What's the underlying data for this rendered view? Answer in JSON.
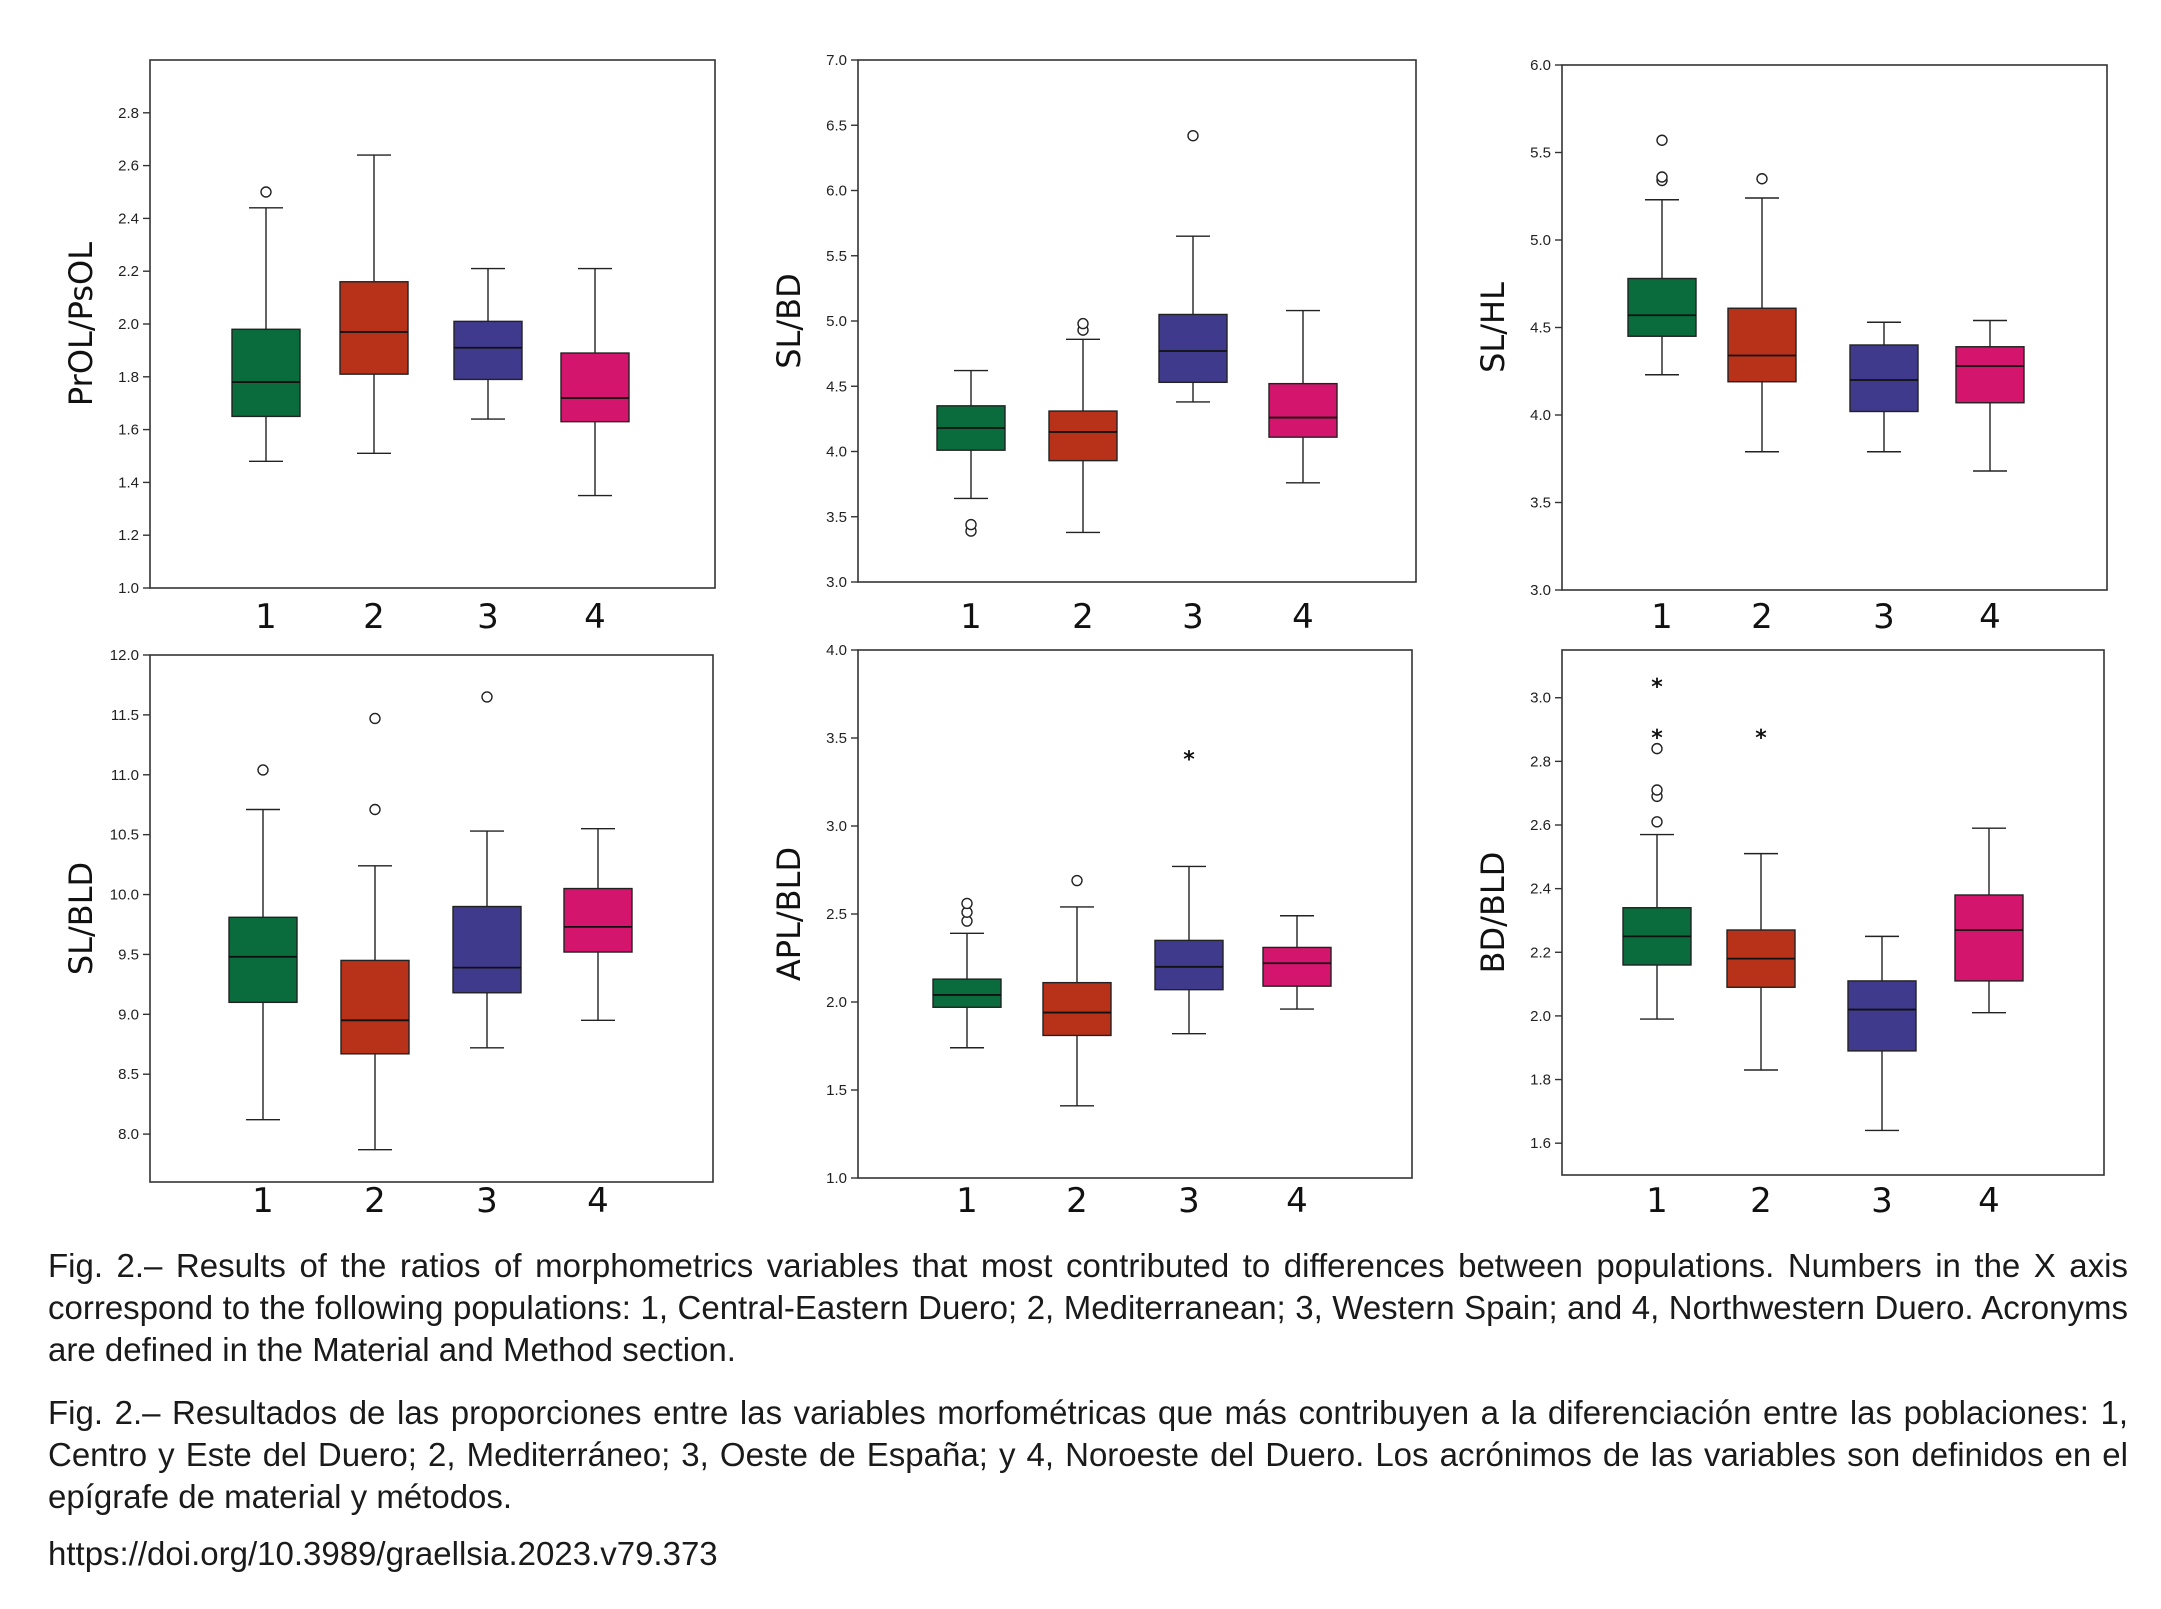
{
  "colors": {
    "1": "#0a6b3c",
    "2": "#b8321a",
    "3": "#3f3a8c",
    "4": "#d4156d"
  },
  "chart_data": [
    {
      "type": "box",
      "ylabel": "PrOL/PsOL",
      "categories": [
        "1",
        "2",
        "3",
        "4"
      ],
      "ylim": [
        1.0,
        3.0
      ],
      "yticks": [
        "1.0",
        "1.2",
        "1.4",
        "1.6",
        "1.8",
        "2.0",
        "2.2",
        "2.4",
        "2.6",
        "2.8"
      ],
      "boxes": [
        {
          "min": 1.48,
          "q1": 1.65,
          "median": 1.78,
          "q3": 1.98,
          "max": 2.44,
          "outliers": [
            2.5
          ],
          "extremes": []
        },
        {
          "min": 1.51,
          "q1": 1.81,
          "median": 1.97,
          "q3": 2.16,
          "max": 2.64,
          "outliers": [],
          "extremes": []
        },
        {
          "min": 1.64,
          "q1": 1.79,
          "median": 1.91,
          "q3": 2.01,
          "max": 2.21,
          "outliers": [],
          "extremes": []
        },
        {
          "min": 1.35,
          "q1": 1.63,
          "median": 1.72,
          "q3": 1.89,
          "max": 2.21,
          "outliers": [],
          "extremes": []
        }
      ]
    },
    {
      "type": "box",
      "ylabel": "SL/BD",
      "categories": [
        "1",
        "2",
        "3",
        "4"
      ],
      "ylim": [
        3.0,
        7.0
      ],
      "yticks": [
        "3.0",
        "3.5",
        "4.0",
        "4.5",
        "5.0",
        "5.5",
        "6.0",
        "6.5",
        "7.0"
      ],
      "boxes": [
        {
          "min": 3.64,
          "q1": 4.01,
          "median": 4.18,
          "q3": 4.35,
          "max": 4.62,
          "outliers": [
            3.39,
            3.44
          ],
          "extremes": []
        },
        {
          "min": 3.38,
          "q1": 3.93,
          "median": 4.15,
          "q3": 4.31,
          "max": 4.86,
          "outliers": [
            4.93,
            4.98
          ],
          "extremes": []
        },
        {
          "min": 4.38,
          "q1": 4.53,
          "median": 4.77,
          "q3": 5.05,
          "max": 5.65,
          "outliers": [
            6.42
          ],
          "extremes": []
        },
        {
          "min": 3.76,
          "q1": 4.11,
          "median": 4.26,
          "q3": 4.52,
          "max": 5.08,
          "outliers": [],
          "extremes": []
        }
      ]
    },
    {
      "type": "box",
      "ylabel": "SL/HL",
      "categories": [
        "1",
        "2",
        "3",
        "4"
      ],
      "ylim": [
        3.0,
        6.0
      ],
      "yticks": [
        "3.0",
        "3.5",
        "4.0",
        "4.5",
        "5.0",
        "5.5",
        "6.0"
      ],
      "boxes": [
        {
          "min": 4.23,
          "q1": 4.45,
          "median": 4.57,
          "q3": 4.78,
          "max": 5.23,
          "outliers": [
            5.34,
            5.36,
            5.57
          ],
          "extremes": []
        },
        {
          "min": 3.79,
          "q1": 4.19,
          "median": 4.34,
          "q3": 4.61,
          "max": 5.24,
          "outliers": [
            5.35
          ],
          "extremes": []
        },
        {
          "min": 3.79,
          "q1": 4.02,
          "median": 4.2,
          "q3": 4.4,
          "max": 4.53,
          "outliers": [],
          "extremes": []
        },
        {
          "min": 3.68,
          "q1": 4.07,
          "median": 4.28,
          "q3": 4.39,
          "max": 4.54,
          "outliers": [],
          "extremes": []
        }
      ]
    },
    {
      "type": "box",
      "ylabel": "SL/BLD",
      "categories": [
        "1",
        "2",
        "3",
        "4"
      ],
      "ylim": [
        7.6,
        12.0
      ],
      "yticks": [
        "8.0",
        "8.5",
        "9.0",
        "9.5",
        "10.0",
        "10.5",
        "11.0",
        "11.5",
        "12.0"
      ],
      "boxes": [
        {
          "min": 8.12,
          "q1": 9.1,
          "median": 9.48,
          "q3": 9.81,
          "max": 10.71,
          "outliers": [
            11.04
          ],
          "extremes": []
        },
        {
          "min": 7.87,
          "q1": 8.67,
          "median": 8.95,
          "q3": 9.45,
          "max": 10.24,
          "outliers": [
            10.71,
            11.47
          ],
          "extremes": []
        },
        {
          "min": 8.72,
          "q1": 9.18,
          "median": 9.39,
          "q3": 9.9,
          "max": 10.53,
          "outliers": [
            11.65
          ],
          "extremes": []
        },
        {
          "min": 8.95,
          "q1": 9.52,
          "median": 9.73,
          "q3": 10.05,
          "max": 10.55,
          "outliers": [],
          "extremes": []
        }
      ]
    },
    {
      "type": "box",
      "ylabel": "APL/BLD",
      "categories": [
        "1",
        "2",
        "3",
        "4"
      ],
      "ylim": [
        1.0,
        4.0
      ],
      "yticks": [
        "1.0",
        "1.5",
        "2.0",
        "2.5",
        "3.0",
        "3.5",
        "4.0"
      ],
      "boxes": [
        {
          "min": 1.74,
          "q1": 1.97,
          "median": 2.04,
          "q3": 2.13,
          "max": 2.39,
          "outliers": [
            2.46,
            2.51,
            2.56
          ],
          "extremes": []
        },
        {
          "min": 1.41,
          "q1": 1.81,
          "median": 1.94,
          "q3": 2.11,
          "max": 2.54,
          "outliers": [
            2.69
          ],
          "extremes": []
        },
        {
          "min": 1.82,
          "q1": 2.07,
          "median": 2.2,
          "q3": 2.35,
          "max": 2.77,
          "outliers": [],
          "extremes": [
            3.39
          ]
        },
        {
          "min": 1.96,
          "q1": 2.09,
          "median": 2.22,
          "q3": 2.31,
          "max": 2.49,
          "outliers": [],
          "extremes": []
        }
      ]
    },
    {
      "type": "box",
      "ylabel": "BD/BLD",
      "categories": [
        "1",
        "2",
        "3",
        "4"
      ],
      "ylim": [
        1.5,
        3.15
      ],
      "yticks": [
        "1.6",
        "1.8",
        "2.0",
        "2.2",
        "2.4",
        "2.6",
        "2.8",
        "3.0"
      ],
      "boxes": [
        {
          "min": 1.99,
          "q1": 2.16,
          "median": 2.25,
          "q3": 2.34,
          "max": 2.57,
          "outliers": [
            2.61,
            2.69,
            2.71,
            2.84
          ],
          "extremes": [
            2.88,
            3.04
          ]
        },
        {
          "min": 1.83,
          "q1": 2.09,
          "median": 2.18,
          "q3": 2.27,
          "max": 2.51,
          "outliers": [],
          "extremes": [
            2.88
          ]
        },
        {
          "min": 1.64,
          "q1": 1.89,
          "median": 2.02,
          "q3": 2.11,
          "max": 2.25,
          "outliers": [],
          "extremes": []
        },
        {
          "min": 2.01,
          "q1": 2.11,
          "median": 2.27,
          "q3": 2.38,
          "max": 2.59,
          "outliers": [],
          "extremes": []
        }
      ]
    }
  ],
  "caption_en": "Fig. 2.– Results of the ratios of morphometrics variables that most contributed to differences between populations. Numbers in the X axis correspond to the following populations: 1, Central-Eastern Duero; 2, Mediterranean; 3, Western Spain; and 4, Northwestern Duero. Acronyms are defined in the Material and Method section.",
  "caption_es": "Fig. 2.– Resultados de las proporciones entre las variables morfométricas que más contribuyen a la diferenciación entre las poblaciones: 1, Centro y Este del Duero; 2, Mediterráneo; 3, Oeste de España; y 4, Noroeste del Duero. Los acrónimos de las variables son definidos en el epígrafe de material y métodos.",
  "doi": "https://doi.org/10.3989/graellsia.2023.v79.373"
}
